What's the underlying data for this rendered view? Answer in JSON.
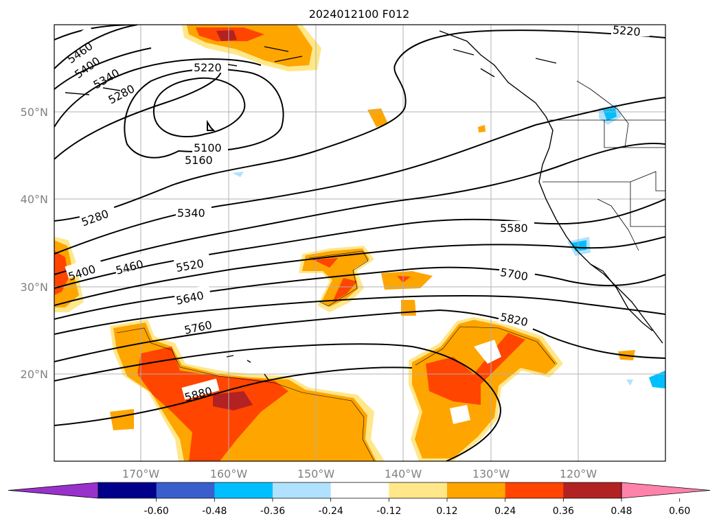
{
  "title": "2024012100 F012",
  "map": {
    "lat_labels": [
      "50°N",
      "40°N",
      "30°N",
      "20°N"
    ],
    "lon_labels": [
      "170°W",
      "160°W",
      "150°W",
      "140°W",
      "130°W",
      "120°W"
    ],
    "contour_labels": [
      "5460",
      "5400",
      "5340",
      "5280",
      "5220",
      "5220",
      "5100",
      "5160",
      "5280",
      "5340",
      "5400",
      "5460",
      "5520",
      "5580",
      "5640",
      "5700",
      "5760",
      "5820",
      "5880"
    ]
  },
  "colorbar": {
    "ticks": [
      "-0.60",
      "-0.48",
      "-0.36",
      "-0.24",
      "-0.12",
      "0.12",
      "0.24",
      "0.36",
      "0.48",
      "0.60"
    ],
    "colors": [
      "#9932cc",
      "#00008b",
      "#3a5fcd",
      "#00bfff",
      "#b0e2ff",
      "#ffffff",
      "#ffe78a",
      "#ffa500",
      "#ff4500",
      "#b22222",
      "#ff82ab"
    ]
  }
}
